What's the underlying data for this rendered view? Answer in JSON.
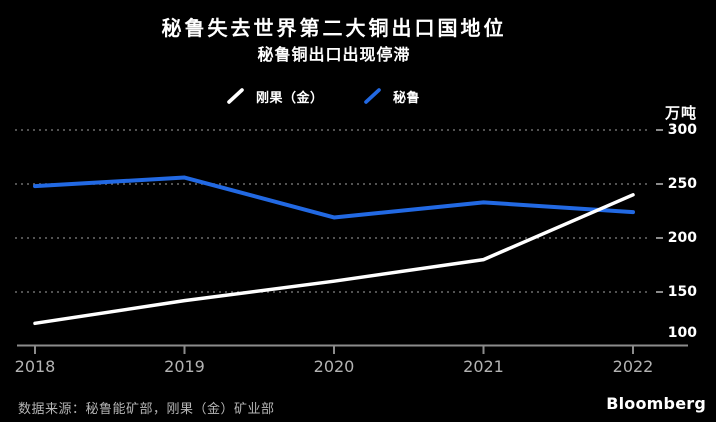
{
  "header": {
    "title": "秘鲁失去世界第二大铜出口国地位",
    "subtitle": "秘鲁铜出口出现停滞"
  },
  "legend": {
    "items": [
      {
        "label": "刚果（金）",
        "color": "#ffffff"
      },
      {
        "label": "秘鲁",
        "color": "#2269e3"
      }
    ]
  },
  "footer": {
    "source": "数据来源：秘鲁能矿部，刚果（金）矿业部",
    "brand": "Bloomberg"
  },
  "colors": {
    "background": "#000000",
    "congo_line": "#ffffff",
    "peru_line": "#2269e3",
    "gridline": "#6e6e6e",
    "axis": "#8c8c8c",
    "x_tick_label": "#b3b3b3",
    "y_tick_label": "#ffffff",
    "source_text": "#b5b5b5"
  },
  "chart_data": {
    "type": "line",
    "title": "秘鲁失去世界第二大铜出口国地位",
    "subtitle": "秘鲁铜出口出现停滞",
    "xlabel": "",
    "ylabel": "万吨",
    "x": [
      2018,
      2019,
      2020,
      2021,
      2022
    ],
    "series": [
      {
        "name": "刚果（金）",
        "color": "#ffffff",
        "values": [
          121,
          142,
          160,
          180,
          240
        ]
      },
      {
        "name": "秘鲁",
        "color": "#2269e3",
        "values": [
          248,
          256,
          219,
          233,
          224
        ]
      }
    ],
    "ylim": [
      100,
      300
    ],
    "yticks": [
      100,
      150,
      200,
      250,
      300
    ],
    "grid": "dotted horizontal gridlines, labels on right axis",
    "legend_position": "top center"
  }
}
